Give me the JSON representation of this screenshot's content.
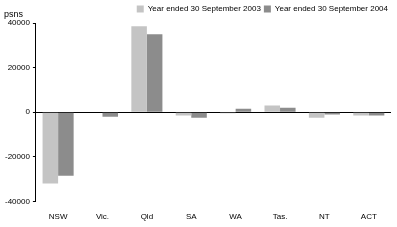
{
  "chart_data": {
    "type": "bar",
    "y_label": "psns",
    "categories": [
      "NSW",
      "Vic.",
      "Qld",
      "SA",
      "WA",
      "Tas.",
      "NT",
      "ACT"
    ],
    "series": [
      {
        "name": "Year ended 30 September 2003",
        "color": "#c4c4c4",
        "values": [
          -32000,
          -200,
          38500,
          -1500,
          -500,
          3000,
          -2500,
          -1500
        ]
      },
      {
        "name": "Year ended 30 September 2004",
        "color": "#8c8c8c",
        "values": [
          -28500,
          -2000,
          35000,
          -2500,
          1500,
          2000,
          -1000,
          -1500
        ]
      }
    ],
    "ylim": [
      -40000,
      40000
    ],
    "yticks": [
      -40000,
      -20000,
      0,
      20000,
      40000
    ],
    "grid": true,
    "legend": "top-right"
  }
}
